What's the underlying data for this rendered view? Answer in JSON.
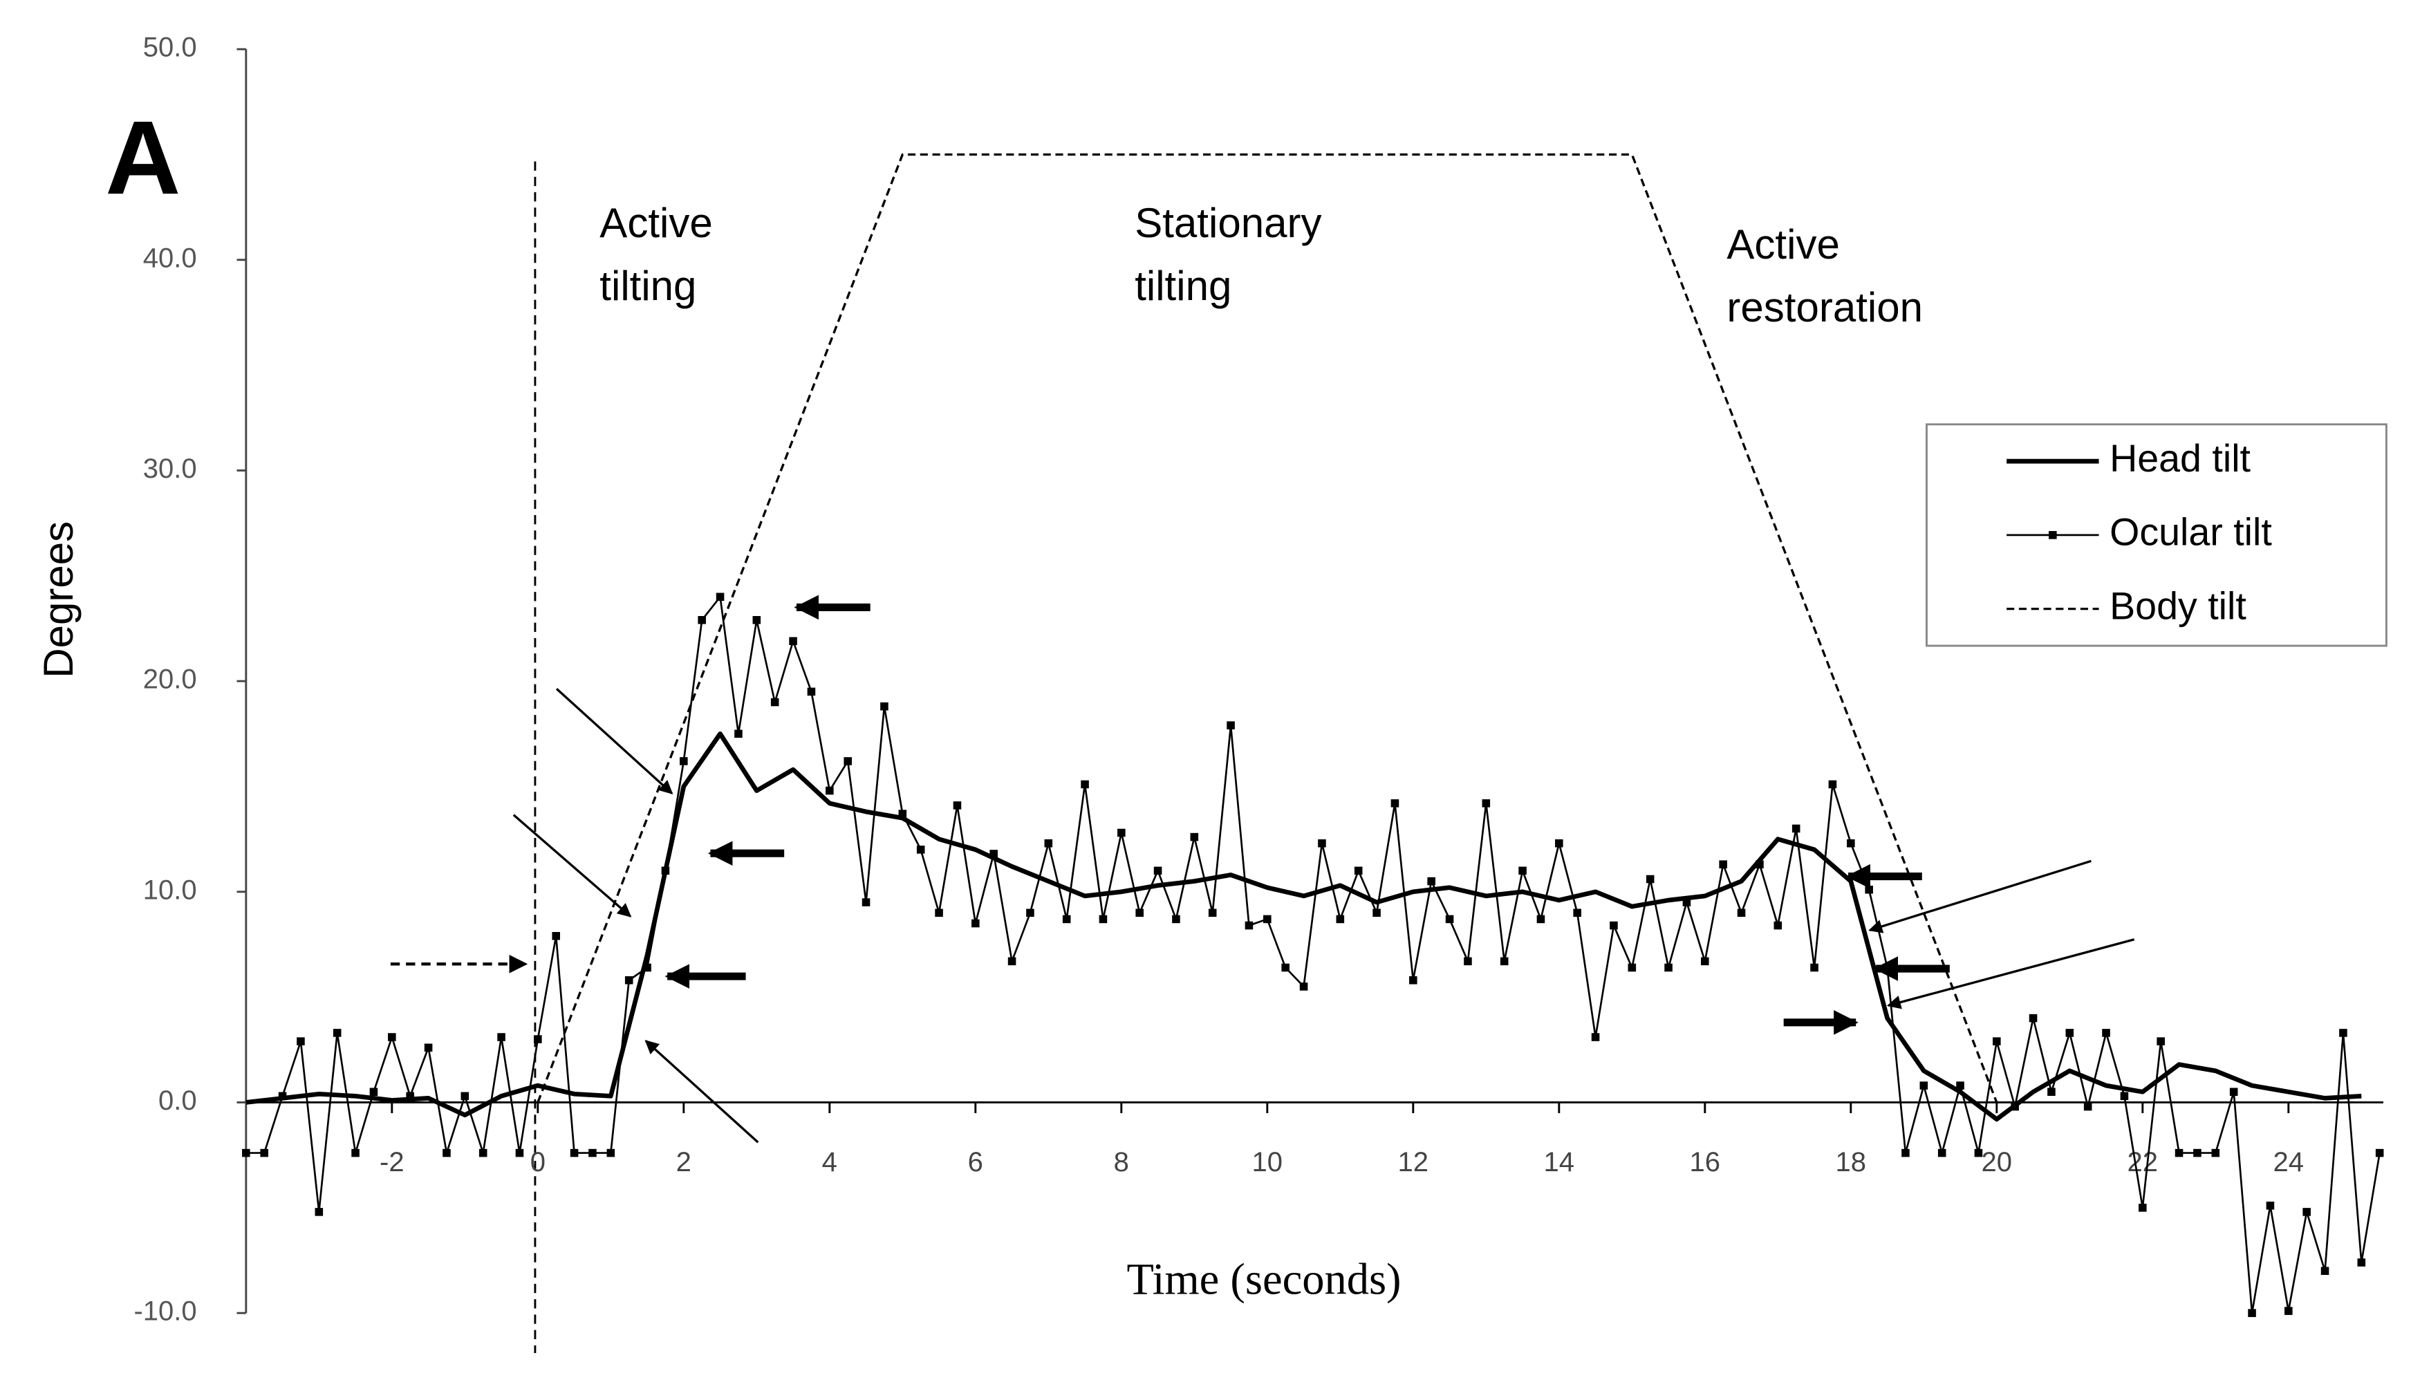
{
  "chart_data": {
    "type": "line",
    "panel_label": "A",
    "xlabel": "Time (seconds)",
    "ylabel": "Degrees",
    "annotations": [
      [
        "Active",
        "tilting"
      ],
      [
        "Stationary",
        "tilting"
      ],
      [
        "Active",
        "restoration"
      ]
    ],
    "xlim": [
      -4,
      25.3
    ],
    "ylim": [
      -10,
      50
    ],
    "xticks": [
      -2,
      0,
      2,
      4,
      6,
      8,
      10,
      12,
      14,
      16,
      18,
      20,
      22,
      24
    ],
    "yticks": [
      {
        "value": -10,
        "label": "-10.0"
      },
      {
        "value": 0,
        "label": "0.0"
      },
      {
        "value": 10,
        "label": "10.0"
      },
      {
        "value": 20,
        "label": "20.0"
      },
      {
        "value": 30,
        "label": "30.0"
      },
      {
        "value": 40,
        "label": "40.0"
      },
      {
        "value": 50,
        "label": "50.0"
      }
    ],
    "series": [
      {
        "name": "Head tilt",
        "color": "#000000",
        "x": [
          -4,
          -3.5,
          -3,
          -2.5,
          -2,
          -1.5,
          -1,
          -0.5,
          0,
          0.5,
          1,
          1.5,
          2,
          2.5,
          3,
          3.5,
          4,
          4.5,
          5,
          5.5,
          6,
          6.5,
          7,
          7.5,
          8,
          8.5,
          9,
          9.5,
          10,
          10.5,
          11,
          11.5,
          12,
          12.5,
          13,
          13.5,
          14,
          14.5,
          15,
          15.5,
          16,
          16.5,
          17,
          17.5,
          18,
          18.5,
          19,
          19.5,
          20,
          20.5,
          21,
          21.5,
          22,
          22.5,
          23,
          23.5,
          24,
          24.5,
          25
        ],
        "values": [
          0,
          0.2,
          0.4,
          0.3,
          0.1,
          0.2,
          -0.6,
          0.3,
          0.8,
          0.4,
          0.3,
          7,
          15,
          17.5,
          14.8,
          15.8,
          14.2,
          13.8,
          13.5,
          12.5,
          12,
          11.2,
          10.5,
          9.8,
          10,
          10.3,
          10.5,
          10.8,
          10.2,
          9.8,
          10.3,
          9.5,
          10,
          10.2,
          9.8,
          10,
          9.6,
          10,
          9.3,
          9.6,
          9.8,
          10.5,
          12.5,
          12,
          10.5,
          4,
          1.5,
          0.5,
          -0.8,
          0.5,
          1.5,
          0.8,
          0.5,
          1.8,
          1.5,
          0.8,
          0.5,
          0.2,
          0.3
        ]
      },
      {
        "name": "Ocular tilt",
        "color": "#000000",
        "x": [
          -4,
          -3.75,
          -3.5,
          -3.25,
          -3,
          -2.75,
          -2.5,
          -2.25,
          -2,
          -1.75,
          -1.5,
          -1.25,
          -1,
          -0.75,
          -0.5,
          -0.25,
          0,
          0.25,
          0.5,
          0.75,
          1,
          1.25,
          1.5,
          1.75,
          2,
          2.25,
          2.5,
          2.75,
          3,
          3.25,
          3.5,
          3.75,
          4,
          4.25,
          4.5,
          4.75,
          5,
          5.25,
          5.5,
          5.75,
          6,
          6.25,
          6.5,
          6.75,
          7,
          7.25,
          7.5,
          7.75,
          8,
          8.25,
          8.5,
          8.75,
          9,
          9.25,
          9.5,
          9.75,
          10,
          10.25,
          10.5,
          10.75,
          11,
          11.25,
          11.5,
          11.75,
          12,
          12.25,
          12.5,
          12.75,
          13,
          13.25,
          13.5,
          13.75,
          14,
          14.25,
          14.5,
          14.75,
          15,
          15.25,
          15.5,
          15.75,
          16,
          16.25,
          16.5,
          16.75,
          17,
          17.25,
          17.5,
          17.75,
          18,
          18.25,
          18.5,
          18.75,
          19,
          19.25,
          19.5,
          19.75,
          20,
          20.25,
          20.5,
          20.75,
          21,
          21.25,
          21.5,
          21.75,
          22,
          22.25,
          22.5,
          22.75,
          23,
          23.25,
          23.5,
          23.75,
          24,
          24.25,
          24.5,
          24.75,
          25,
          25.25
        ],
        "values": [
          -2.4,
          -2.4,
          0.3,
          2.9,
          -5.2,
          3.3,
          -2.4,
          0.5,
          3.1,
          0.3,
          2.6,
          -2.4,
          0.3,
          -2.4,
          3.1,
          -2.4,
          3.0,
          7.9,
          -2.4,
          -2.4,
          -2.4,
          5.8,
          6.4,
          11.0,
          16.2,
          22.9,
          24.0,
          17.5,
          22.9,
          19.0,
          21.9,
          19.5,
          14.8,
          16.2,
          9.5,
          18.8,
          13.7,
          12.0,
          9.0,
          14.1,
          8.5,
          11.8,
          6.7,
          9.0,
          12.3,
          8.7,
          15.1,
          8.7,
          12.8,
          9.0,
          11.0,
          8.7,
          12.6,
          9.0,
          17.9,
          8.4,
          8.7,
          6.4,
          5.5,
          12.3,
          8.7,
          11.0,
          9.0,
          14.2,
          5.8,
          10.5,
          8.7,
          6.7,
          14.2,
          6.7,
          11.0,
          8.7,
          12.3,
          9.0,
          3.1,
          8.4,
          6.4,
          10.6,
          6.4,
          9.5,
          6.7,
          11.3,
          9.0,
          11.3,
          8.4,
          13.0,
          6.4,
          15.1,
          12.3,
          10.1,
          6.4,
          -2.4,
          0.8,
          -2.4,
          0.8,
          -2.4,
          2.9,
          -0.2,
          4.0,
          0.5,
          3.3,
          -0.2,
          3.3,
          0.3,
          -5.0,
          2.9,
          -2.4,
          -2.4,
          -2.4,
          0.5,
          -10.0,
          -4.9,
          -9.9,
          -5.2,
          -8.0,
          3.3,
          -7.6,
          -2.4
        ]
      },
      {
        "name": "Body tilt",
        "color": "#000000",
        "x": [
          0,
          5,
          15,
          20
        ],
        "values": [
          0,
          45,
          45,
          0
        ]
      }
    ],
    "legend": "upper right",
    "grid": false
  }
}
